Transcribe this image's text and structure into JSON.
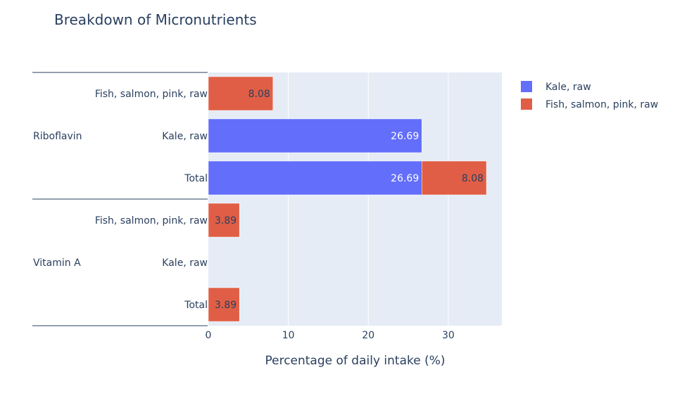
{
  "chart_data": {
    "type": "bar",
    "orientation": "horizontal",
    "barmode": "stack",
    "title": "Breakdown of Micronutrients",
    "xlabel": "Percentage of daily intake (%)",
    "ylabel": "",
    "xlim": [
      0,
      36.7
    ],
    "x_ticks": [
      0,
      10,
      20,
      30
    ],
    "grid": true,
    "legend_position": "top-right",
    "groups": [
      {
        "name": "Riboflavin",
        "categories": [
          "Fish, salmon, pink, raw",
          "Kale, raw",
          "Total"
        ]
      },
      {
        "name": "Vitamin A",
        "categories": [
          "Fish, salmon, pink, raw",
          "Kale, raw",
          "Total"
        ]
      }
    ],
    "series": [
      {
        "name": "Kale, raw",
        "color": "#636efa",
        "label_color": "#ffffff",
        "values": [
          null,
          26.69,
          26.69,
          null,
          0,
          0
        ],
        "labels": [
          "",
          "26.69",
          "26.69",
          "",
          "",
          ""
        ]
      },
      {
        "name": "Fish, salmon, pink, raw",
        "color": "#e05e45",
        "label_color": "#2a3f5f",
        "values": [
          8.08,
          null,
          8.08,
          3.89,
          null,
          3.89
        ],
        "labels": [
          "8.08",
          "",
          "8.08",
          "3.89",
          "",
          "3.89"
        ]
      }
    ]
  }
}
